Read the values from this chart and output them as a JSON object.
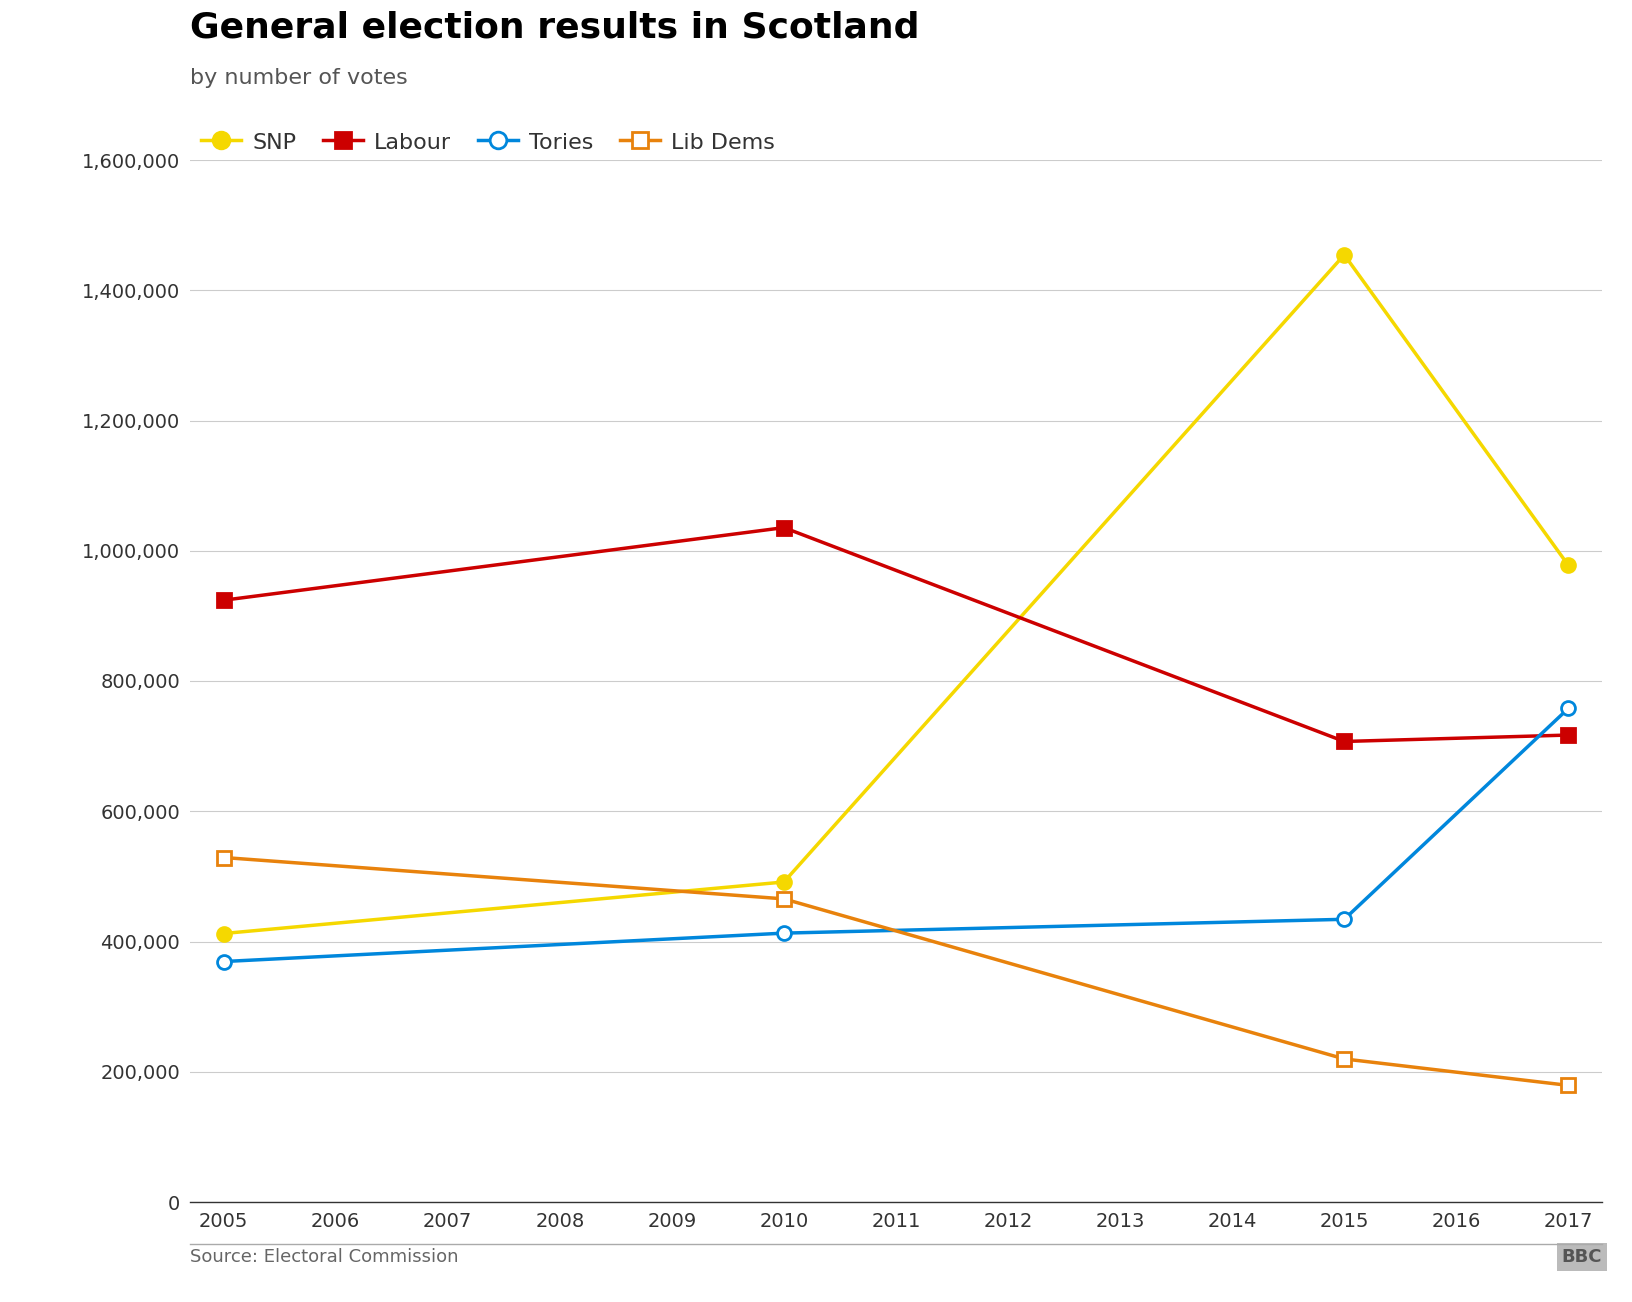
{
  "title": "General election results in Scotland",
  "subtitle": "by number of votes",
  "source": "Source: Electoral Commission",
  "years": [
    2005,
    2010,
    2015,
    2017
  ],
  "x_range": [
    2005,
    2017
  ],
  "y_range": [
    0,
    1600000
  ],
  "y_ticks": [
    0,
    200000,
    400000,
    600000,
    800000,
    1000000,
    1200000,
    1400000,
    1600000
  ],
  "series": [
    {
      "name": "SNP",
      "values": [
        412267,
        491386,
        1454436,
        977569
      ],
      "color": "#f5d800",
      "marker": "o",
      "marker_fill": "#f5d800",
      "marker_edge": "#f5d800",
      "linewidth": 2.5,
      "markersize": 10,
      "filled": true
    },
    {
      "name": "Labour",
      "values": [
        924040,
        1035528,
        707147,
        717007
      ],
      "color": "#cc0000",
      "marker": "s",
      "marker_fill": "#cc0000",
      "marker_edge": "#cc0000",
      "linewidth": 2.5,
      "markersize": 10,
      "filled": true
    },
    {
      "name": "Tories",
      "values": [
        369225,
        412855,
        434097,
        757949
      ],
      "color": "#0087dc",
      "marker": "o",
      "marker_fill": "white",
      "marker_edge": "#0087dc",
      "linewidth": 2.5,
      "markersize": 10,
      "filled": false
    },
    {
      "name": "Lib Dems",
      "values": [
        528976,
        465471,
        219675,
        179061
      ],
      "color": "#e8820c",
      "marker": "s",
      "marker_fill": "white",
      "marker_edge": "#e8820c",
      "linewidth": 2.5,
      "markersize": 10,
      "filled": false
    }
  ],
  "background_color": "#ffffff",
  "grid_color": "#cccccc",
  "axis_label_color": "#333333",
  "title_color": "#000000",
  "subtitle_color": "#555555",
  "source_color": "#666666",
  "title_fontsize": 26,
  "subtitle_fontsize": 16,
  "tick_fontsize": 14,
  "legend_fontsize": 16,
  "source_fontsize": 13
}
